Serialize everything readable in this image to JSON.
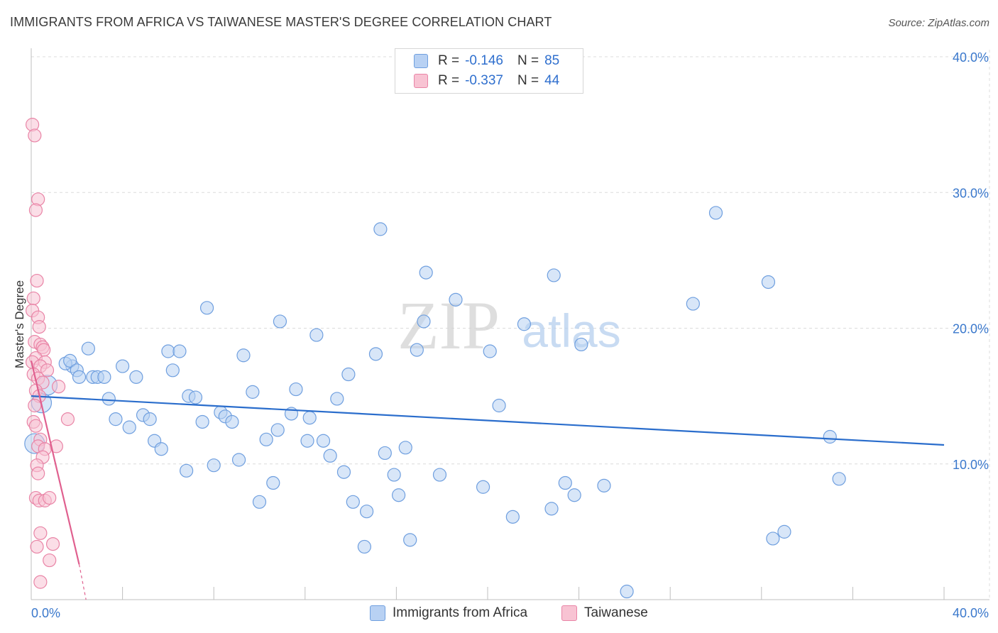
{
  "title": "IMMIGRANTS FROM AFRICA VS TAIWANESE MASTER'S DEGREE CORRELATION CHART",
  "source": "Source: ZipAtlas.com",
  "watermark": {
    "zip": "ZIP",
    "atlas": "atlas"
  },
  "legend": {
    "r_label": "R =",
    "n_label": "N =",
    "rows": [
      {
        "name": "Immigrants from Africa",
        "r": "-0.146",
        "n": "85",
        "fill": "#b8d1f3",
        "stroke": "#6f9fdf"
      },
      {
        "name": "Taiwanese",
        "r": "-0.337",
        "n": "44",
        "fill": "#f8c3d3",
        "stroke": "#e984a6"
      }
    ]
  },
  "colors": {
    "blue_line": "#2a6dcc",
    "pink_line": "#e0608f",
    "axis_text": "#3a78cc",
    "grid": "#dcdcdc"
  },
  "chart_data": {
    "type": "scatter",
    "xlabel": "",
    "ylabel": "Master's Degree",
    "xlim": [
      0,
      40
    ],
    "ylim": [
      0,
      40
    ],
    "x_tick_labels": [
      {
        "value": 0,
        "label": "0.0%"
      },
      {
        "value": 40,
        "label": "40.0%"
      }
    ],
    "y_tick_labels": [
      {
        "value": 10,
        "label": "10.0%"
      },
      {
        "value": 20,
        "label": "20.0%"
      },
      {
        "value": 30,
        "label": "30.0%"
      },
      {
        "value": 40,
        "label": "40.0%"
      }
    ],
    "series": [
      {
        "name": "Immigrants from Africa",
        "trend": {
          "x": [
            0,
            40
          ],
          "y": [
            15.0,
            11.4
          ]
        },
        "points": [
          {
            "x": 0.15,
            "y": 11.5,
            "big": true
          },
          {
            "x": 0.45,
            "y": 14.5,
            "big": true
          },
          {
            "x": 0.7,
            "y": 15.8,
            "big": true
          },
          {
            "x": 1.8,
            "y": 17.2
          },
          {
            "x": 1.5,
            "y": 17.4
          },
          {
            "x": 1.7,
            "y": 17.6
          },
          {
            "x": 2.0,
            "y": 16.9
          },
          {
            "x": 2.5,
            "y": 18.5
          },
          {
            "x": 2.1,
            "y": 16.4
          },
          {
            "x": 2.7,
            "y": 16.4
          },
          {
            "x": 2.9,
            "y": 16.4
          },
          {
            "x": 3.2,
            "y": 16.4
          },
          {
            "x": 3.4,
            "y": 14.8
          },
          {
            "x": 3.7,
            "y": 13.3
          },
          {
            "x": 4.0,
            "y": 17.2
          },
          {
            "x": 4.3,
            "y": 12.7
          },
          {
            "x": 4.6,
            "y": 16.4
          },
          {
            "x": 4.9,
            "y": 13.6
          },
          {
            "x": 5.2,
            "y": 13.3
          },
          {
            "x": 5.4,
            "y": 11.7
          },
          {
            "x": 5.7,
            "y": 11.1
          },
          {
            "x": 6.0,
            "y": 18.3
          },
          {
            "x": 6.2,
            "y": 16.9
          },
          {
            "x": 6.5,
            "y": 18.3
          },
          {
            "x": 6.8,
            "y": 9.5
          },
          {
            "x": 6.9,
            "y": 15.0
          },
          {
            "x": 7.2,
            "y": 14.9
          },
          {
            "x": 7.5,
            "y": 13.1
          },
          {
            "x": 7.7,
            "y": 21.5
          },
          {
            "x": 8.0,
            "y": 9.9
          },
          {
            "x": 8.3,
            "y": 13.8
          },
          {
            "x": 8.5,
            "y": 13.5
          },
          {
            "x": 8.8,
            "y": 13.1
          },
          {
            "x": 9.1,
            "y": 10.3
          },
          {
            "x": 9.3,
            "y": 18.0
          },
          {
            "x": 9.7,
            "y": 15.3
          },
          {
            "x": 10.0,
            "y": 7.2
          },
          {
            "x": 10.3,
            "y": 11.8
          },
          {
            "x": 10.6,
            "y": 8.6
          },
          {
            "x": 10.9,
            "y": 20.5
          },
          {
            "x": 10.8,
            "y": 12.5
          },
          {
            "x": 11.4,
            "y": 13.7
          },
          {
            "x": 11.6,
            "y": 15.5
          },
          {
            "x": 12.1,
            "y": 11.7
          },
          {
            "x": 12.2,
            "y": 13.4
          },
          {
            "x": 12.5,
            "y": 19.5
          },
          {
            "x": 12.8,
            "y": 11.7
          },
          {
            "x": 13.1,
            "y": 10.6
          },
          {
            "x": 13.4,
            "y": 14.8
          },
          {
            "x": 13.7,
            "y": 9.4
          },
          {
            "x": 13.9,
            "y": 16.6
          },
          {
            "x": 14.1,
            "y": 7.2
          },
          {
            "x": 14.6,
            "y": 3.9
          },
          {
            "x": 14.7,
            "y": 6.5
          },
          {
            "x": 15.1,
            "y": 18.1
          },
          {
            "x": 15.3,
            "y": 27.3
          },
          {
            "x": 15.5,
            "y": 10.8
          },
          {
            "x": 15.9,
            "y": 9.2
          },
          {
            "x": 16.1,
            "y": 7.7
          },
          {
            "x": 16.4,
            "y": 11.2
          },
          {
            "x": 16.6,
            "y": 4.4
          },
          {
            "x": 16.9,
            "y": 18.4
          },
          {
            "x": 17.2,
            "y": 20.5
          },
          {
            "x": 17.3,
            "y": 24.1
          },
          {
            "x": 17.9,
            "y": 9.2
          },
          {
            "x": 18.6,
            "y": 22.1
          },
          {
            "x": 19.8,
            "y": 8.3
          },
          {
            "x": 20.1,
            "y": 18.3
          },
          {
            "x": 20.5,
            "y": 14.3
          },
          {
            "x": 21.1,
            "y": 6.1
          },
          {
            "x": 21.6,
            "y": 20.3
          },
          {
            "x": 22.8,
            "y": 6.7
          },
          {
            "x": 22.9,
            "y": 23.9
          },
          {
            "x": 23.4,
            "y": 8.6
          },
          {
            "x": 23.8,
            "y": 7.7
          },
          {
            "x": 24.1,
            "y": 18.8
          },
          {
            "x": 25.1,
            "y": 8.4
          },
          {
            "x": 26.1,
            "y": 0.6
          },
          {
            "x": 29.0,
            "y": 21.8
          },
          {
            "x": 30.0,
            "y": 28.5
          },
          {
            "x": 32.3,
            "y": 23.4
          },
          {
            "x": 32.5,
            "y": 4.5
          },
          {
            "x": 33.0,
            "y": 5.0
          },
          {
            "x": 35.0,
            "y": 12.0
          },
          {
            "x": 35.4,
            "y": 8.9
          }
        ]
      },
      {
        "name": "Taiwanese",
        "trend": {
          "x": [
            0,
            2.1
          ],
          "y": [
            17.6,
            2.6
          ]
        },
        "trend_dashed": {
          "x": [
            2.1,
            2.4
          ],
          "y": [
            2.6,
            0
          ]
        },
        "points": [
          {
            "x": 0.05,
            "y": 35.0
          },
          {
            "x": 0.15,
            "y": 34.2
          },
          {
            "x": 0.3,
            "y": 29.5
          },
          {
            "x": 0.2,
            "y": 28.7
          },
          {
            "x": 0.25,
            "y": 23.5
          },
          {
            "x": 0.1,
            "y": 22.2
          },
          {
            "x": 0.05,
            "y": 21.3
          },
          {
            "x": 0.3,
            "y": 20.8
          },
          {
            "x": 0.35,
            "y": 20.1
          },
          {
            "x": 0.15,
            "y": 19.0
          },
          {
            "x": 0.4,
            "y": 18.8
          },
          {
            "x": 0.5,
            "y": 18.6
          },
          {
            "x": 0.55,
            "y": 18.4
          },
          {
            "x": 0.2,
            "y": 17.8
          },
          {
            "x": 0.05,
            "y": 17.5
          },
          {
            "x": 0.6,
            "y": 17.5
          },
          {
            "x": 0.4,
            "y": 17.2
          },
          {
            "x": 0.7,
            "y": 16.9
          },
          {
            "x": 0.1,
            "y": 16.6
          },
          {
            "x": 0.3,
            "y": 16.3
          },
          {
            "x": 0.5,
            "y": 16.0
          },
          {
            "x": 1.2,
            "y": 15.7
          },
          {
            "x": 0.2,
            "y": 15.4
          },
          {
            "x": 0.35,
            "y": 15.0
          },
          {
            "x": 0.15,
            "y": 14.3
          },
          {
            "x": 1.6,
            "y": 13.3
          },
          {
            "x": 0.1,
            "y": 13.1
          },
          {
            "x": 0.2,
            "y": 12.8
          },
          {
            "x": 0.4,
            "y": 11.8
          },
          {
            "x": 0.3,
            "y": 11.3
          },
          {
            "x": 1.1,
            "y": 11.3
          },
          {
            "x": 0.6,
            "y": 11.1
          },
          {
            "x": 0.5,
            "y": 10.5
          },
          {
            "x": 0.25,
            "y": 9.9
          },
          {
            "x": 0.3,
            "y": 9.3
          },
          {
            "x": 0.2,
            "y": 7.5
          },
          {
            "x": 0.35,
            "y": 7.3
          },
          {
            "x": 0.6,
            "y": 7.3
          },
          {
            "x": 0.8,
            "y": 7.5
          },
          {
            "x": 0.4,
            "y": 4.9
          },
          {
            "x": 0.95,
            "y": 4.1
          },
          {
            "x": 0.25,
            "y": 3.9
          },
          {
            "x": 0.8,
            "y": 2.9
          },
          {
            "x": 0.4,
            "y": 1.3
          }
        ]
      }
    ]
  }
}
